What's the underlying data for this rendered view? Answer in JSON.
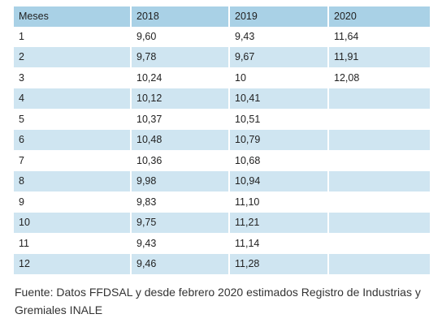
{
  "table": {
    "headers": [
      "Meses",
      "2018",
      "2019",
      "2020"
    ],
    "rows": [
      [
        "1",
        "9,60",
        "9,43",
        "11,64"
      ],
      [
        "2",
        "9,78",
        "9,67",
        "11,91"
      ],
      [
        "3",
        "10,24",
        "10",
        "12,08"
      ],
      [
        "4",
        "10,12",
        "10,41",
        ""
      ],
      [
        "5",
        "10,37",
        "10,51",
        ""
      ],
      [
        "6",
        "10,48",
        "10,79",
        ""
      ],
      [
        "7",
        "10,36",
        "10,68",
        ""
      ],
      [
        "8",
        "9,98",
        "10,94",
        ""
      ],
      [
        "9",
        "9,83",
        "11,10",
        ""
      ],
      [
        "10",
        "9,75",
        "11,21",
        ""
      ],
      [
        "11",
        "9,43",
        "11,14",
        ""
      ],
      [
        "12",
        "9,46",
        "11,28",
        ""
      ]
    ]
  },
  "source_note": "Fuente: Datos FFDSAL y desde febrero 2020 estimados Registro de Industrias y Gremiales INALE",
  "colors": {
    "header_bg": "#a9d1e6",
    "stripe_bg": "#cfe5f1",
    "row_bg": "#ffffff"
  }
}
